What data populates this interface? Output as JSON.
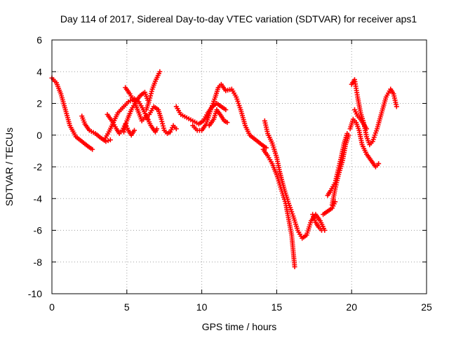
{
  "chart_data": {
    "type": "scatter",
    "title": "Day 114 of 2017, Sidereal Day-to-day VTEC variation (SDTVAR) for receiver aps1",
    "xlabel": "GPS time / hours",
    "ylabel": "SDTVAR / TECUs",
    "xlim": [
      0,
      25
    ],
    "ylim": [
      -10,
      6
    ],
    "xticks": [
      0,
      5,
      10,
      15,
      20,
      25
    ],
    "yticks": [
      -10,
      -8,
      -6,
      -4,
      -2,
      0,
      2,
      4,
      6
    ],
    "xtick_labels": [
      "0",
      "5",
      "10",
      "15",
      "20",
      "25"
    ],
    "ytick_labels": [
      "-10",
      "-8",
      "-6",
      "-4",
      "-2",
      "0",
      "2",
      "4",
      "6"
    ],
    "grid": true,
    "marker": "+",
    "marker_color": "#ff0000",
    "legend": "none",
    "series": [
      {
        "points": [
          [
            0.0,
            3.6
          ],
          [
            0.3,
            3.3
          ],
          [
            0.6,
            2.6
          ],
          [
            0.9,
            1.6
          ],
          [
            1.2,
            0.6
          ],
          [
            1.6,
            -0.1
          ],
          [
            2.0,
            -0.4
          ],
          [
            2.4,
            -0.7
          ],
          [
            2.7,
            -0.9
          ]
        ]
      },
      {
        "points": [
          [
            2.0,
            1.2
          ],
          [
            2.2,
            0.7
          ],
          [
            2.5,
            0.3
          ],
          [
            2.9,
            0.1
          ],
          [
            3.3,
            -0.2
          ],
          [
            3.6,
            -0.4
          ],
          [
            3.9,
            -0.3
          ]
        ]
      },
      {
        "points": [
          [
            3.5,
            -0.3
          ],
          [
            3.8,
            0.2
          ],
          [
            4.1,
            0.8
          ],
          [
            4.4,
            1.4
          ],
          [
            4.8,
            1.8
          ],
          [
            5.1,
            2.1
          ],
          [
            5.5,
            2.3
          ],
          [
            5.8,
            2.1
          ],
          [
            6.1,
            1.6
          ],
          [
            6.4,
            1.0
          ]
        ]
      },
      {
        "points": [
          [
            3.7,
            1.3
          ],
          [
            4.0,
            0.9
          ],
          [
            4.3,
            0.4
          ],
          [
            4.5,
            0.1
          ],
          [
            4.7,
            0.3
          ],
          [
            4.9,
            0.7
          ],
          [
            5.1,
            0.3
          ],
          [
            5.3,
            0.0
          ],
          [
            5.5,
            0.3
          ]
        ]
      },
      {
        "points": [
          [
            4.8,
            0.2
          ],
          [
            5.0,
            0.9
          ],
          [
            5.3,
            1.6
          ],
          [
            5.6,
            2.1
          ],
          [
            5.9,
            2.5
          ],
          [
            6.2,
            2.7
          ],
          [
            6.4,
            2.2
          ]
        ]
      },
      {
        "points": [
          [
            4.9,
            3.0
          ],
          [
            5.2,
            2.6
          ],
          [
            5.5,
            2.1
          ],
          [
            5.8,
            1.4
          ],
          [
            6.0,
            0.9
          ],
          [
            6.3,
            1.2
          ],
          [
            6.6,
            0.6
          ],
          [
            6.9,
            0.2
          ],
          [
            7.0,
            0.4
          ]
        ]
      },
      {
        "points": [
          [
            6.3,
            1.6
          ],
          [
            6.5,
            2.2
          ],
          [
            6.7,
            2.9
          ],
          [
            6.9,
            3.4
          ],
          [
            7.2,
            4.0
          ]
        ]
      },
      {
        "points": [
          [
            6.5,
            1.3
          ],
          [
            6.8,
            1.8
          ],
          [
            7.1,
            1.6
          ],
          [
            7.3,
            1.0
          ],
          [
            7.5,
            0.3
          ],
          [
            7.7,
            0.1
          ],
          [
            7.9,
            0.2
          ],
          [
            8.1,
            0.6
          ],
          [
            8.3,
            0.4
          ]
        ]
      },
      {
        "points": [
          [
            8.3,
            1.8
          ],
          [
            8.6,
            1.3
          ],
          [
            9.0,
            1.1
          ],
          [
            9.4,
            0.9
          ],
          [
            9.8,
            0.7
          ],
          [
            10.1,
            0.9
          ],
          [
            10.4,
            1.4
          ],
          [
            10.7,
            1.8
          ],
          [
            11.0,
            2.0
          ],
          [
            11.3,
            1.8
          ],
          [
            11.6,
            1.6
          ]
        ]
      },
      {
        "points": [
          [
            9.4,
            0.6
          ],
          [
            9.7,
            0.3
          ],
          [
            10.0,
            0.3
          ],
          [
            10.3,
            0.7
          ],
          [
            10.6,
            1.6
          ],
          [
            10.9,
            2.4
          ],
          [
            11.1,
            3.0
          ],
          [
            11.3,
            3.2
          ],
          [
            11.6,
            2.8
          ],
          [
            12.0,
            2.9
          ],
          [
            12.3,
            2.4
          ],
          [
            12.6,
            1.6
          ],
          [
            12.9,
            0.6
          ],
          [
            13.2,
            0.0
          ],
          [
            13.6,
            -0.3
          ],
          [
            14.0,
            -0.6
          ],
          [
            14.3,
            -0.8
          ]
        ]
      },
      {
        "points": [
          [
            10.5,
            0.6
          ],
          [
            10.8,
            1.0
          ],
          [
            11.0,
            1.6
          ],
          [
            11.3,
            1.2
          ],
          [
            11.5,
            0.9
          ],
          [
            11.7,
            0.8
          ]
        ]
      },
      {
        "points": [
          [
            14.1,
            -0.9
          ],
          [
            14.4,
            -1.3
          ],
          [
            14.7,
            -1.8
          ],
          [
            15.0,
            -2.5
          ],
          [
            15.3,
            -3.4
          ],
          [
            15.6,
            -4.3
          ],
          [
            15.8,
            -5.3
          ],
          [
            16.0,
            -6.3
          ],
          [
            16.1,
            -7.3
          ],
          [
            16.2,
            -8.3
          ]
        ]
      },
      {
        "points": [
          [
            14.2,
            0.9
          ],
          [
            14.4,
            0.1
          ],
          [
            14.7,
            -0.5
          ],
          [
            15.0,
            -1.4
          ],
          [
            15.2,
            -2.3
          ],
          [
            15.5,
            -3.4
          ],
          [
            15.8,
            -4.3
          ],
          [
            16.1,
            -5.1
          ],
          [
            16.4,
            -6.0
          ],
          [
            16.7,
            -6.5
          ],
          [
            17.0,
            -6.3
          ],
          [
            17.3,
            -5.4
          ],
          [
            17.6,
            -5.0
          ],
          [
            17.9,
            -5.4
          ],
          [
            18.2,
            -6.0
          ]
        ]
      },
      {
        "points": [
          [
            17.4,
            -5.0
          ],
          [
            17.6,
            -5.5
          ],
          [
            17.8,
            -5.8
          ],
          [
            18.0,
            -6.0
          ]
        ]
      },
      {
        "points": [
          [
            18.1,
            -5.0
          ],
          [
            18.4,
            -4.8
          ],
          [
            18.7,
            -4.6
          ],
          [
            18.9,
            -4.2
          ]
        ]
      },
      {
        "points": [
          [
            18.4,
            -3.8
          ],
          [
            18.6,
            -3.5
          ],
          [
            18.9,
            -3.0
          ],
          [
            19.1,
            -2.2
          ],
          [
            19.3,
            -1.4
          ],
          [
            19.5,
            -0.5
          ],
          [
            19.7,
            0.1
          ]
        ]
      },
      {
        "points": [
          [
            18.7,
            -4.4
          ],
          [
            18.9,
            -3.4
          ],
          [
            19.1,
            -2.6
          ],
          [
            19.4,
            -1.6
          ],
          [
            19.6,
            -0.6
          ],
          [
            19.8,
            0.0
          ]
        ]
      },
      {
        "points": [
          [
            19.9,
            0.4
          ],
          [
            20.1,
            1.0
          ],
          [
            20.3,
            0.8
          ],
          [
            20.5,
            0.3
          ],
          [
            20.7,
            -0.6
          ],
          [
            21.0,
            -1.2
          ],
          [
            21.3,
            -1.6
          ],
          [
            21.6,
            -2.0
          ],
          [
            21.8,
            -1.8
          ]
        ]
      },
      {
        "points": [
          [
            20.0,
            3.2
          ],
          [
            20.2,
            3.5
          ],
          [
            20.4,
            2.4
          ],
          [
            20.6,
            1.4
          ],
          [
            20.8,
            0.8
          ],
          [
            21.0,
            -0.1
          ],
          [
            21.2,
            -0.6
          ],
          [
            21.4,
            -0.4
          ],
          [
            21.7,
            0.4
          ],
          [
            22.0,
            1.4
          ],
          [
            22.3,
            2.4
          ],
          [
            22.6,
            2.9
          ],
          [
            22.8,
            2.6
          ],
          [
            23.0,
            1.8
          ]
        ]
      },
      {
        "points": [
          [
            20.2,
            1.6
          ],
          [
            20.4,
            1.2
          ],
          [
            20.6,
            1.0
          ],
          [
            20.8,
            0.7
          ],
          [
            21.0,
            0.4
          ]
        ]
      }
    ]
  }
}
